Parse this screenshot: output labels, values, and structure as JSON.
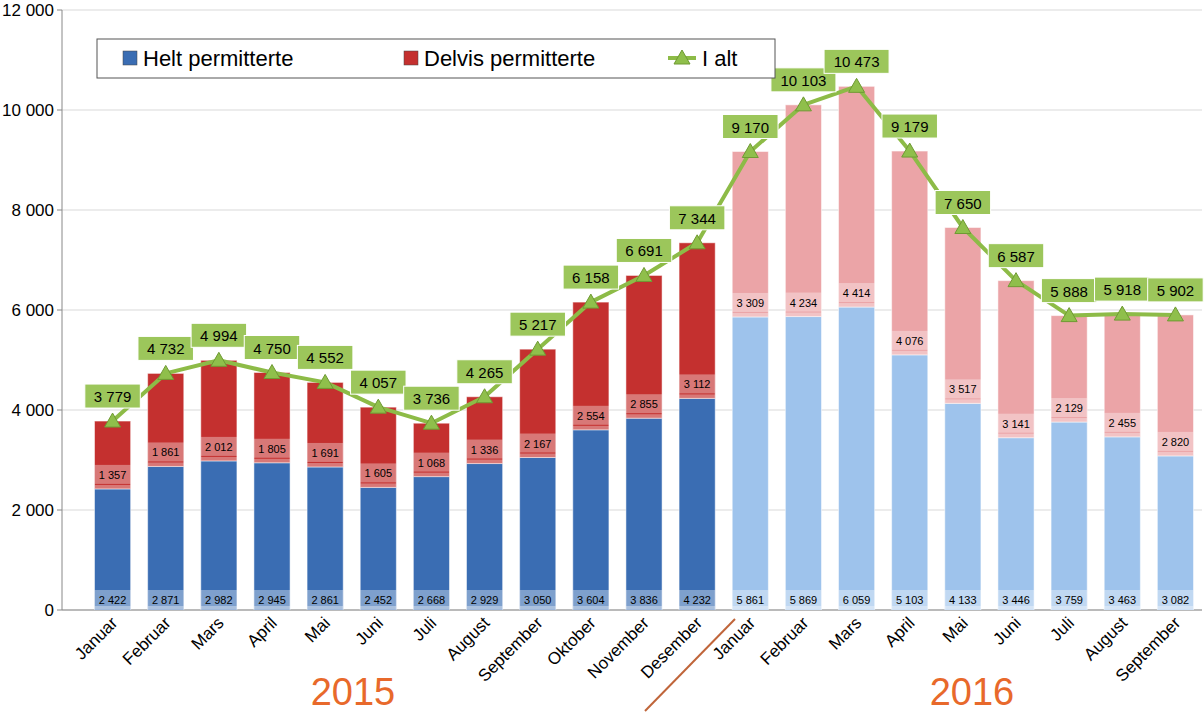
{
  "chart_data": {
    "type": "bar",
    "stacked": true,
    "data_labels": true,
    "grid": true,
    "legend": "top-left",
    "categories": [
      "Januar",
      "Februar",
      "Mars",
      "April",
      "Mai",
      "Juni",
      "Juli",
      "August",
      "September",
      "Oktober",
      "November",
      "Desember",
      "Januar",
      "Februar",
      "Mars",
      "April",
      "Mai",
      "Juni",
      "Juli",
      "August",
      "September"
    ],
    "annotations": [
      "2015",
      "2016"
    ],
    "ylim": [
      0,
      12000
    ],
    "yticks": [
      0,
      {
        "value": 2000,
        "label": "2 000"
      },
      {
        "value": 4000,
        "label": "4 000"
      },
      {
        "value": 6000,
        "label": "6 000"
      },
      {
        "value": 8000,
        "label": "8 000"
      },
      {
        "value": 10000,
        "label": "10 000"
      },
      {
        "value": 12000,
        "label": "12 000"
      }
    ],
    "series": [
      {
        "name": "Helt permitterte",
        "type": "bar",
        "color": "#3a6db3",
        "colors": [
          "#3a6db3",
          "#3a6db3",
          "#3a6db3",
          "#3a6db3",
          "#3a6db3",
          "#3a6db3",
          "#3a6db3",
          "#3a6db3",
          "#3a6db3",
          "#3a6db3",
          "#3a6db3",
          "#3a6db3",
          "#9ec3ec",
          "#9ec3ec",
          "#9ec3ec",
          "#9ec3ec",
          "#9ec3ec",
          "#9ec3ec",
          "#9ec3ec",
          "#9ec3ec",
          "#9ec3ec"
        ],
        "values": [
          2422,
          2871,
          2982,
          2945,
          2861,
          2452,
          2668,
          2929,
          3050,
          3604,
          3836,
          4232,
          5861,
          5869,
          6059,
          5103,
          4133,
          3446,
          3759,
          3463,
          3082
        ],
        "value_labels": [
          "2 422",
          "2 871",
          "2 982",
          "2 945",
          "2 861",
          "2 452",
          "2 668",
          "2 929",
          "3 050",
          "3 604",
          "3 836",
          "4 232",
          "5 861",
          "5 869",
          "6 059",
          "5 103",
          "4 133",
          "3 446",
          "3 759",
          "3 463",
          "3 082"
        ]
      },
      {
        "name": "Delvis permitterte",
        "type": "bar",
        "color": "#c4302f",
        "colors": [
          "#c4302f",
          "#c4302f",
          "#c4302f",
          "#c4302f",
          "#c4302f",
          "#c4302f",
          "#c4302f",
          "#c4302f",
          "#c4302f",
          "#c4302f",
          "#c4302f",
          "#c4302f",
          "#eba4a7",
          "#eba4a7",
          "#eba4a7",
          "#eba4a7",
          "#eba4a7",
          "#eba4a7",
          "#eba4a7",
          "#eba4a7",
          "#eba4a7"
        ],
        "values": [
          1357,
          1861,
          2012,
          1805,
          1691,
          1605,
          1068,
          1336,
          2167,
          2554,
          2855,
          3112,
          3309,
          4234,
          4414,
          4076,
          3517,
          3141,
          2129,
          2455,
          2820
        ],
        "value_labels": [
          "1 357",
          "1 861",
          "2 012",
          "1 805",
          "1 691",
          "1 605",
          "1 068",
          "1 336",
          "2 167",
          "2 554",
          "2 855",
          "3 112",
          "3 309",
          "4 234",
          "4 414",
          "4 076",
          "3 517",
          "3 141",
          "2 129",
          "2 455",
          "2 820"
        ]
      },
      {
        "name": "I alt",
        "type": "line",
        "color": "#8dbb47",
        "marker": "triangle",
        "line_style": "solid",
        "values": [
          3779,
          4732,
          4994,
          4750,
          4552,
          4057,
          3736,
          4265,
          5217,
          6158,
          6691,
          7344,
          9170,
          10103,
          10473,
          9179,
          7650,
          6587,
          5888,
          5918,
          5902
        ],
        "value_labels": [
          "3 779",
          "4 732",
          "4 994",
          "4 750",
          "4 552",
          "4 057",
          "3 736",
          "4 265",
          "5 217",
          "6 158",
          "6 691",
          "7 344",
          "9 170",
          "10 103",
          "10 473",
          "9 179",
          "7 650",
          "6 587",
          "5 888",
          "5 918",
          "5 902"
        ]
      }
    ]
  }
}
